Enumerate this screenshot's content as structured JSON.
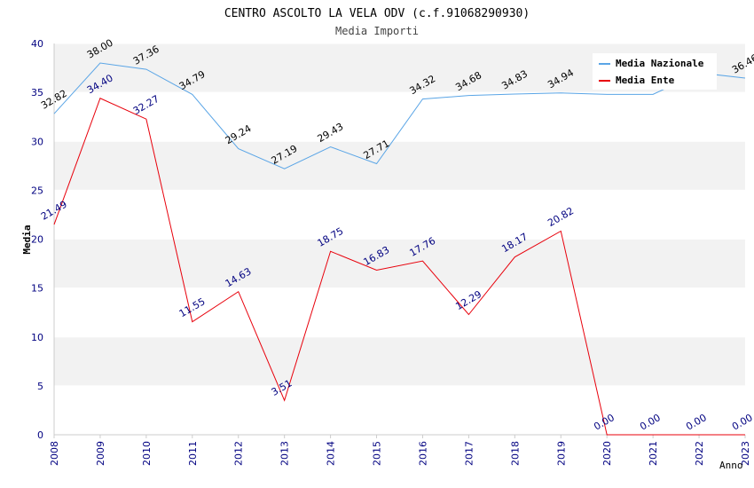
{
  "chart_data": {
    "type": "line",
    "title": "CENTRO ASCOLTO LA VELA ODV (c.f.91068290930)",
    "subtitle": "Media Importi",
    "xlabel": "Anno",
    "ylabel": "Media",
    "ylim": [
      0,
      40
    ],
    "yticks": [
      "0",
      "5",
      "10",
      "15",
      "20",
      "25",
      "30",
      "35",
      "40"
    ],
    "categories": [
      "2008",
      "2009",
      "2010",
      "2011",
      "2012",
      "2013",
      "2014",
      "2015",
      "2016",
      "2017",
      "2018",
      "2019",
      "2020",
      "2021",
      "2022",
      "2023"
    ],
    "legend_position": "top-right",
    "series": [
      {
        "name": "Media Nazionale",
        "color": "#5aa5e6",
        "label_color": "#000000",
        "values": [
          32.82,
          38.0,
          37.36,
          34.79,
          29.24,
          27.19,
          29.43,
          27.71,
          34.32,
          34.68,
          34.83,
          34.94,
          34.8,
          34.8,
          37.0,
          36.46
        ],
        "labels": [
          "32.82",
          "38.00",
          "37.36",
          "34.79",
          "29.24",
          "27.19",
          "29.43",
          "27.71",
          "34.32",
          "34.68",
          "34.83",
          "34.94",
          null,
          null,
          null,
          "36.46"
        ]
      },
      {
        "name": "Media Ente",
        "color": "#e8000b",
        "label_color": "#000080",
        "values": [
          21.49,
          34.4,
          32.27,
          11.55,
          14.63,
          3.51,
          18.75,
          16.83,
          17.76,
          12.29,
          18.17,
          20.82,
          0.0,
          0.0,
          0.0,
          0.0
        ],
        "labels": [
          "21.49",
          "34.40",
          "32.27",
          "11.55",
          "14.63",
          "3.51",
          "18.75",
          "16.83",
          "17.76",
          "12.29",
          "18.17",
          "20.82",
          "0.00",
          "0.00",
          "0.00",
          "0.00"
        ]
      }
    ]
  }
}
